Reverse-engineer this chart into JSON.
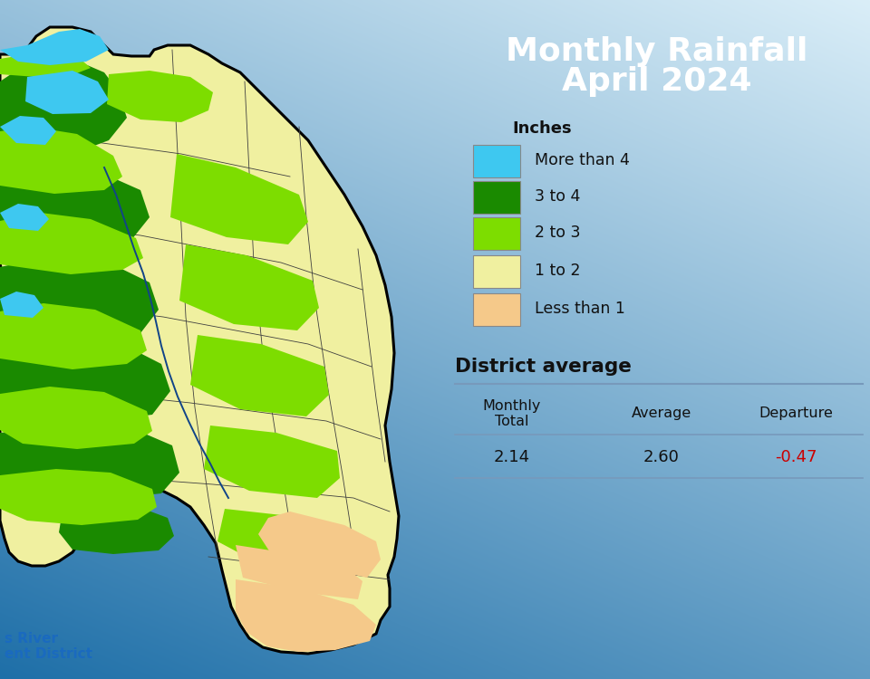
{
  "title_line1": "Monthly Rainfall",
  "title_line2": "April 2024",
  "title_color": "#FFFFFF",
  "title_fontsize": 26,
  "legend_title": "Inches",
  "legend_items": [
    {
      "color": "#3ec8f0",
      "label": "More than 4"
    },
    {
      "color": "#1a8a00",
      "label": "3 to 4"
    },
    {
      "color": "#7ddd00",
      "label": "2 to 3"
    },
    {
      "color": "#f0f0a0",
      "label": "1 to 2"
    },
    {
      "color": "#f5c98a",
      "label": "Less than 1"
    }
  ],
  "district_avg_title": "District average",
  "table_headers": [
    "Monthly\nTotal",
    "Average",
    "Departure"
  ],
  "table_values": [
    "2.14",
    "2.60",
    "-0.47"
  ],
  "departure_color": "#cc0000",
  "table_line_color": "#7799bb",
  "watermark_text": "s River\nent District",
  "watermark_color": "#1a6abf",
  "map_colors": {
    "more_than_4": "#3ec8f0",
    "3_to_4": "#1a8a00",
    "2_to_3": "#7ddd00",
    "1_to_2": "#f0f0a0",
    "less_than_1": "#f5c98a"
  }
}
